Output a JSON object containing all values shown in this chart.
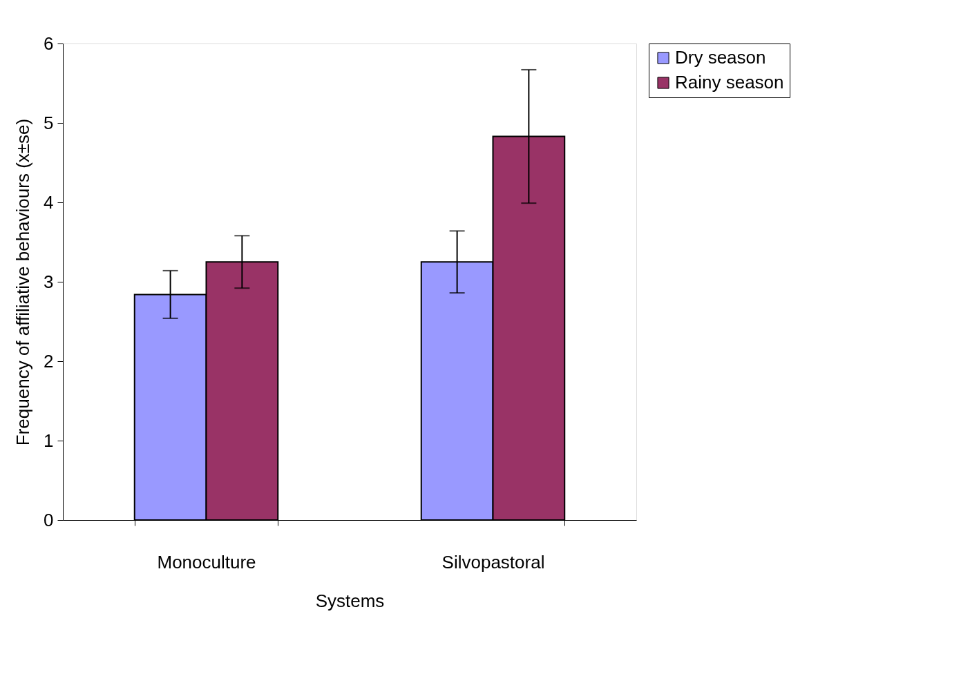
{
  "chart_data": {
    "type": "bar",
    "xlabel": "Systems",
    "ylabel": "Frequency of affiliative behaviours (x±se)",
    "categories": [
      "Monoculture",
      "Silvopastoral"
    ],
    "series": [
      {
        "name": "Dry season",
        "color": "#9999ff",
        "values": [
          2.84,
          3.25
        ],
        "errors": [
          0.3,
          0.39
        ]
      },
      {
        "name": "Rainy season",
        "color": "#993366",
        "values": [
          3.25,
          4.83
        ],
        "errors": [
          0.33,
          0.84
        ]
      }
    ],
    "ylim": [
      0,
      6
    ],
    "yticks": [
      0,
      1,
      2,
      3,
      4,
      5,
      6
    ],
    "grid": false,
    "legend": "top right"
  }
}
